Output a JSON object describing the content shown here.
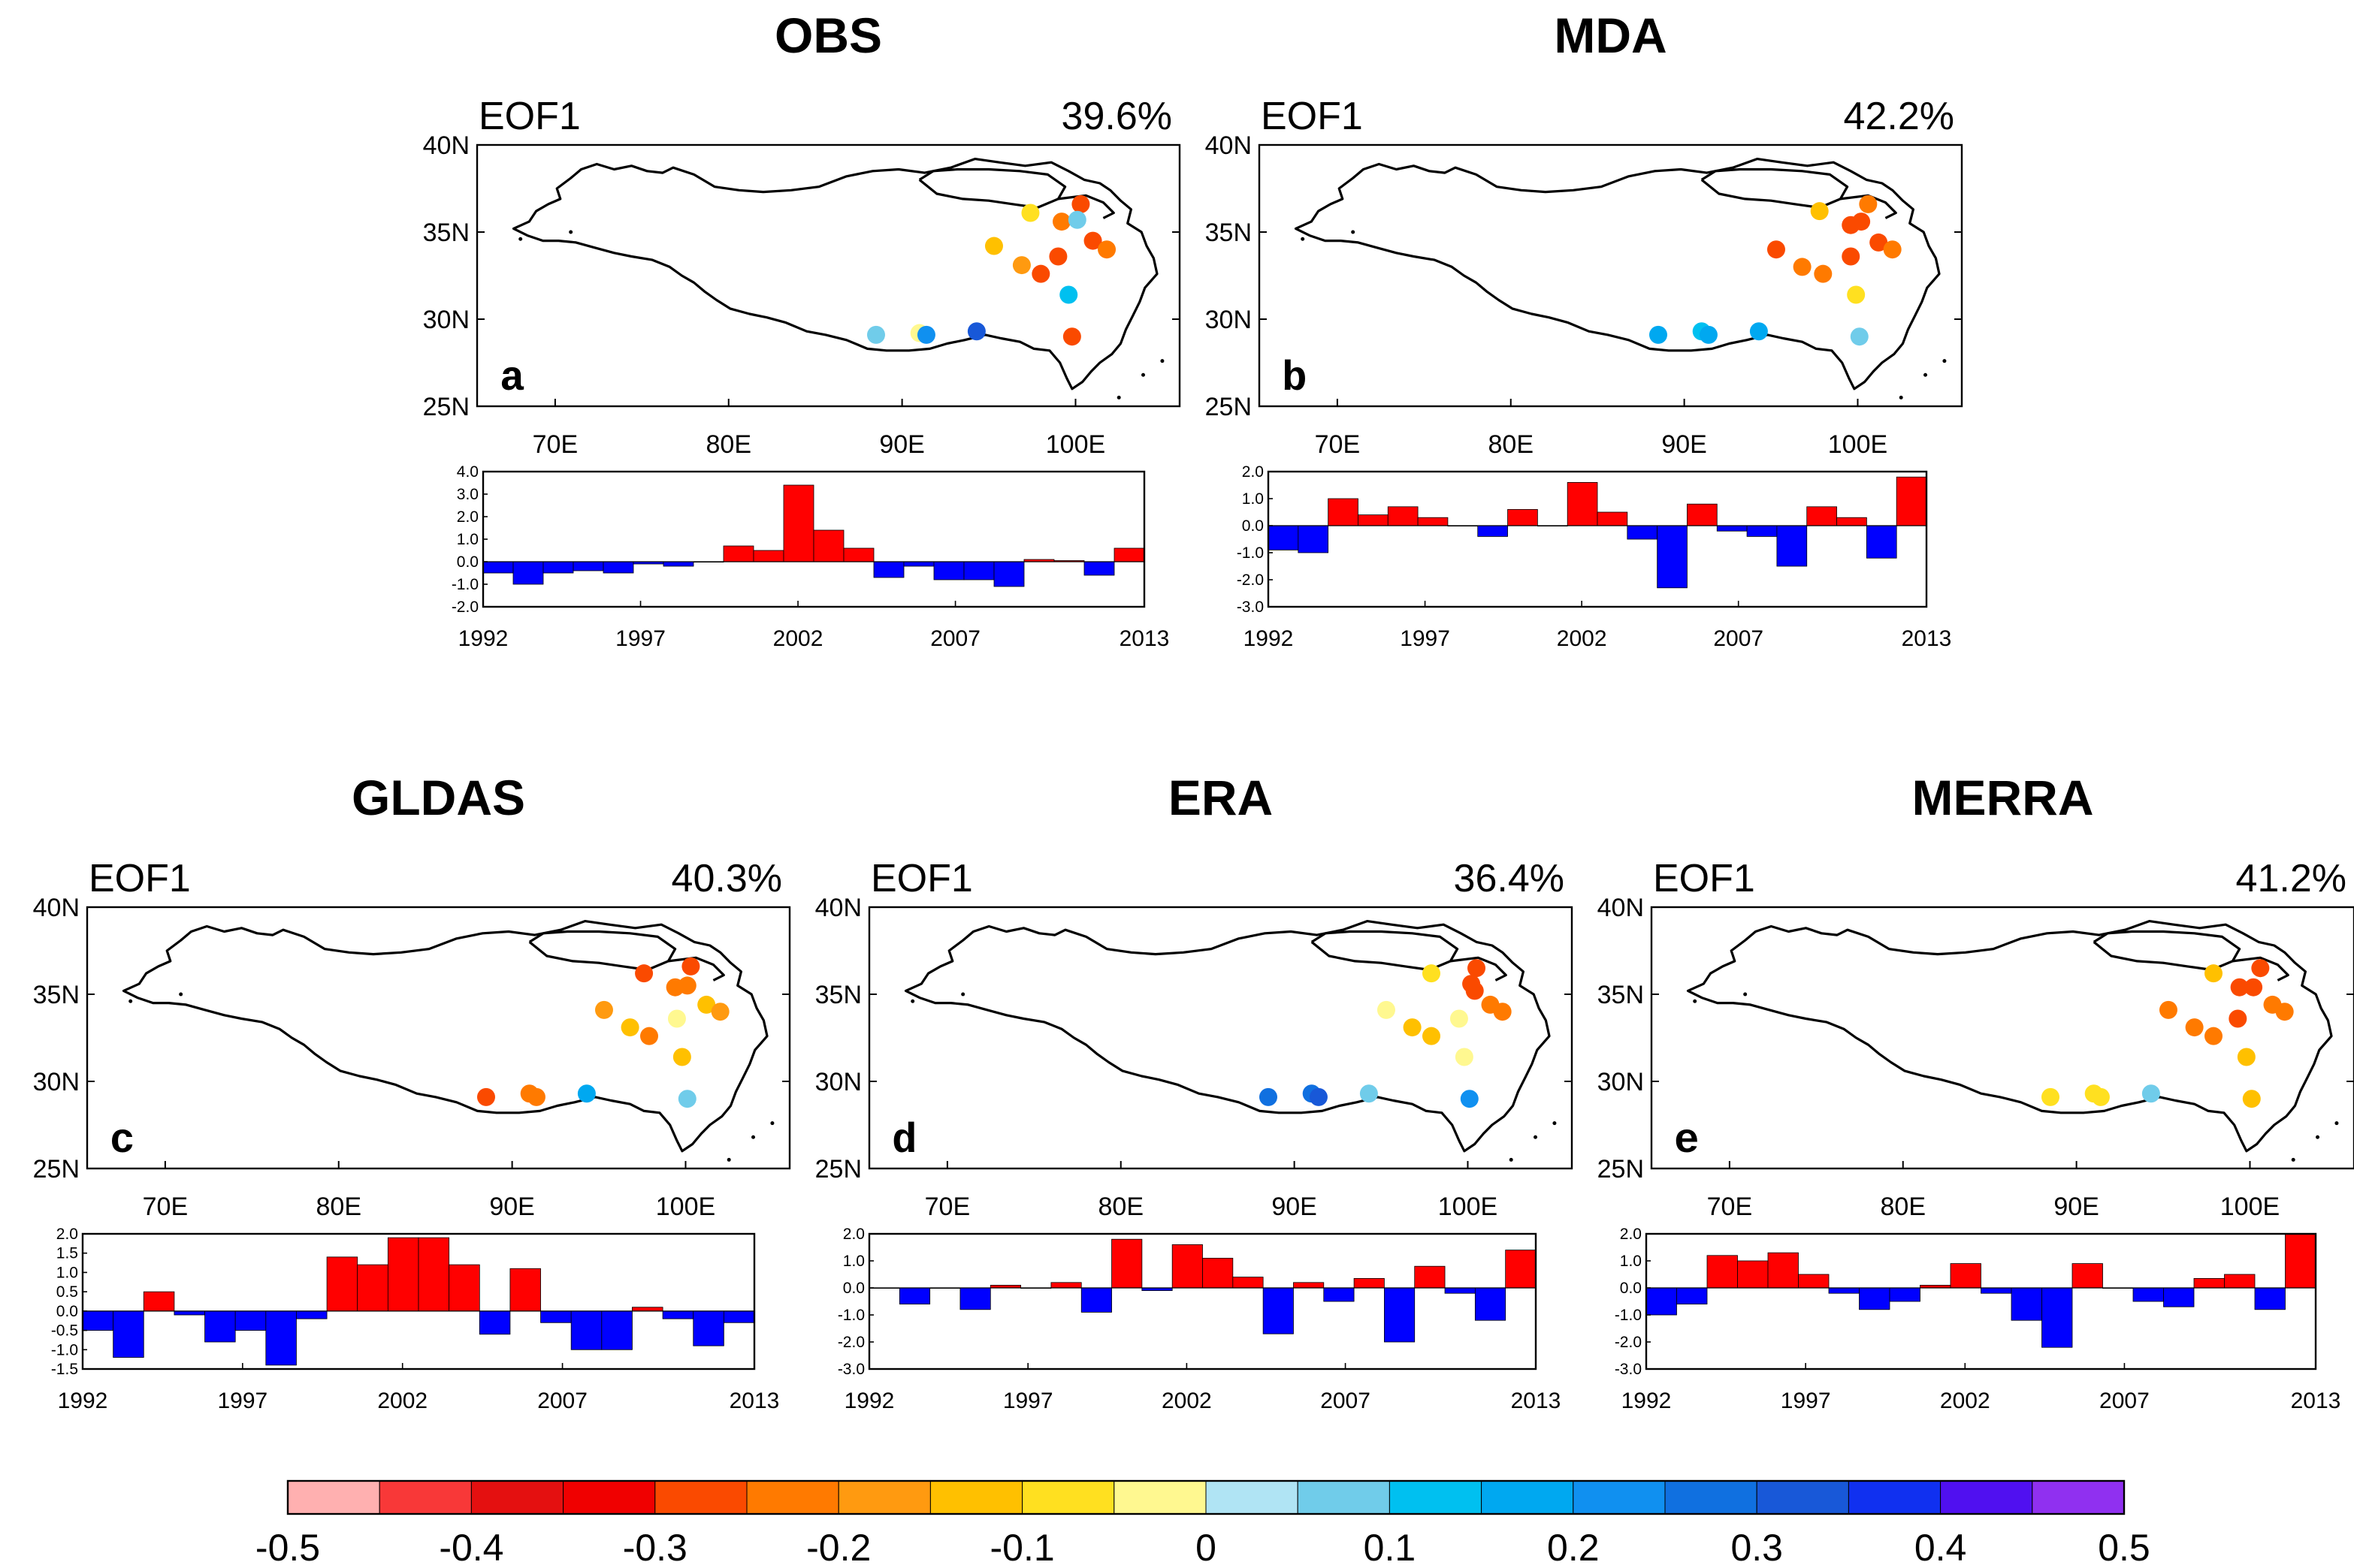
{
  "figure": {
    "map_eof_label": "EOF1",
    "lat_ticks": [
      "40N",
      "35N",
      "30N",
      "25N"
    ],
    "lon_ticks": [
      "70E",
      "80E",
      "90E",
      "100E"
    ],
    "year_ticks": [
      "1992",
      "1997",
      "2002",
      "2007",
      "2013"
    ],
    "colorbar": {
      "colors": [
        "#FFB0B0",
        "#F83838",
        "#E41010",
        "#F00000",
        "#FA4A00",
        "#FF7A00",
        "#FF9A10",
        "#FFC000",
        "#FFE020",
        "#FFF890",
        "#B0E4F4",
        "#70CCEA",
        "#00C0F0",
        "#00A8F0",
        "#1090F0",
        "#1070E0",
        "#1858D8",
        "#1030F0",
        "#5010F0",
        "#9030F0"
      ],
      "labels": [
        "-0.5",
        "-0.4",
        "-0.3",
        "-0.2",
        "-0.1",
        "0",
        "0.1",
        "0.2",
        "0.3",
        "0.4",
        "0.5"
      ]
    }
  },
  "chart_data": [
    {
      "type": "scatter-map+bar",
      "panel": "a",
      "title": "OBS",
      "eof_label": "EOF1",
      "variance": "39.6%",
      "stations": [
        {
          "lon": 100.3,
          "lat": 36.6,
          "v": -0.3
        },
        {
          "lon": 99.2,
          "lat": 35.6,
          "v": -0.22
        },
        {
          "lon": 100.1,
          "lat": 35.7,
          "v": 0.08
        },
        {
          "lon": 97.4,
          "lat": 36.1,
          "v": -0.1
        },
        {
          "lon": 101.0,
          "lat": 34.5,
          "v": -0.3
        },
        {
          "lon": 101.8,
          "lat": 34.0,
          "v": -0.2
        },
        {
          "lon": 95.3,
          "lat": 34.2,
          "v": -0.12
        },
        {
          "lon": 96.9,
          "lat": 33.1,
          "v": -0.16
        },
        {
          "lon": 98.0,
          "lat": 32.6,
          "v": -0.3
        },
        {
          "lon": 99.0,
          "lat": 33.6,
          "v": -0.3
        },
        {
          "lon": 99.6,
          "lat": 31.4,
          "v": 0.14
        },
        {
          "lon": 99.8,
          "lat": 29.0,
          "v": -0.3
        },
        {
          "lon": 88.5,
          "lat": 29.1,
          "v": 0.05
        },
        {
          "lon": 91.0,
          "lat": 29.2,
          "v": -0.05
        },
        {
          "lon": 91.4,
          "lat": 29.1,
          "v": 0.22
        },
        {
          "lon": 94.3,
          "lat": 29.3,
          "v": 0.3
        }
      ],
      "time_series": {
        "years": [
          1992,
          1993,
          1994,
          1995,
          1996,
          1997,
          1998,
          1999,
          2000,
          2001,
          2002,
          2003,
          2004,
          2005,
          2006,
          2007,
          2008,
          2009,
          2010,
          2011,
          2012,
          2013
        ],
        "values": [
          -0.5,
          -1.0,
          -0.5,
          -0.4,
          -0.5,
          -0.1,
          -0.2,
          0.0,
          0.7,
          0.5,
          3.4,
          1.4,
          0.6,
          -0.7,
          -0.2,
          -0.8,
          -0.8,
          -1.1,
          0.1,
          0.05,
          -0.6,
          0.6
        ],
        "ylim": [
          -2.0,
          4.0
        ],
        "yticks": [
          "4.0",
          "3.0",
          "2.0",
          "1.0",
          "0.0",
          "-1.0",
          "-2.0"
        ]
      }
    },
    {
      "type": "scatter-map+bar",
      "panel": "b",
      "title": "MDA",
      "eof_label": "EOF1",
      "variance": "42.2%",
      "stations": [
        {
          "lon": 100.6,
          "lat": 36.6,
          "v": -0.22
        },
        {
          "lon": 100.2,
          "lat": 35.6,
          "v": -0.3
        },
        {
          "lon": 99.6,
          "lat": 35.4,
          "v": -0.3
        },
        {
          "lon": 97.8,
          "lat": 36.2,
          "v": -0.12
        },
        {
          "lon": 101.2,
          "lat": 34.4,
          "v": -0.3
        },
        {
          "lon": 102.0,
          "lat": 34.0,
          "v": -0.22
        },
        {
          "lon": 95.3,
          "lat": 34.0,
          "v": -0.3
        },
        {
          "lon": 96.8,
          "lat": 33.0,
          "v": -0.2
        },
        {
          "lon": 98.0,
          "lat": 32.6,
          "v": -0.2
        },
        {
          "lon": 99.6,
          "lat": 33.6,
          "v": -0.3
        },
        {
          "lon": 99.9,
          "lat": 31.4,
          "v": -0.08
        },
        {
          "lon": 100.1,
          "lat": 29.0,
          "v": 0.08
        },
        {
          "lon": 88.5,
          "lat": 29.1,
          "v": 0.15
        },
        {
          "lon": 91.0,
          "lat": 29.3,
          "v": 0.12
        },
        {
          "lon": 91.4,
          "lat": 29.1,
          "v": 0.18
        },
        {
          "lon": 94.3,
          "lat": 29.3,
          "v": 0.18
        }
      ],
      "time_series": {
        "years": [
          1992,
          1993,
          1994,
          1995,
          1996,
          1997,
          1998,
          1999,
          2000,
          2001,
          2002,
          2003,
          2004,
          2005,
          2006,
          2007,
          2008,
          2009,
          2010,
          2011,
          2012,
          2013
        ],
        "values": [
          -0.9,
          -1.0,
          1.0,
          0.4,
          0.7,
          0.3,
          0.0,
          -0.4,
          0.6,
          0.0,
          1.6,
          0.5,
          -0.5,
          -2.3,
          0.8,
          -0.2,
          -0.4,
          -1.5,
          0.7,
          0.3,
          -1.2,
          1.8
        ],
        "ylim": [
          -3.0,
          2.0
        ],
        "yticks": [
          "2.0",
          "1.0",
          "0.0",
          "-1.0",
          "-2.0",
          "-3.0"
        ]
      }
    },
    {
      "type": "scatter-map+bar",
      "panel": "c",
      "title": "GLDAS",
      "eof_label": "EOF1",
      "variance": "40.3%",
      "stations": [
        {
          "lon": 100.3,
          "lat": 36.6,
          "v": -0.3
        },
        {
          "lon": 100.1,
          "lat": 35.5,
          "v": -0.25
        },
        {
          "lon": 99.4,
          "lat": 35.4,
          "v": -0.22
        },
        {
          "lon": 97.6,
          "lat": 36.2,
          "v": -0.3
        },
        {
          "lon": 101.2,
          "lat": 34.4,
          "v": -0.12
        },
        {
          "lon": 102.0,
          "lat": 34.0,
          "v": -0.16
        },
        {
          "lon": 95.3,
          "lat": 34.1,
          "v": -0.16
        },
        {
          "lon": 96.8,
          "lat": 33.1,
          "v": -0.12
        },
        {
          "lon": 97.9,
          "lat": 32.6,
          "v": -0.2
        },
        {
          "lon": 99.5,
          "lat": 33.6,
          "v": -0.04
        },
        {
          "lon": 99.8,
          "lat": 31.4,
          "v": -0.12
        },
        {
          "lon": 100.1,
          "lat": 29.0,
          "v": 0.06
        },
        {
          "lon": 88.5,
          "lat": 29.1,
          "v": -0.3
        },
        {
          "lon": 91.0,
          "lat": 29.3,
          "v": -0.2
        },
        {
          "lon": 91.4,
          "lat": 29.1,
          "v": -0.2
        },
        {
          "lon": 94.3,
          "lat": 29.3,
          "v": 0.15
        }
      ],
      "time_series": {
        "years": [
          1992,
          1993,
          1994,
          1995,
          1996,
          1997,
          1998,
          1999,
          2000,
          2001,
          2002,
          2003,
          2004,
          2005,
          2006,
          2007,
          2008,
          2009,
          2010,
          2011,
          2012,
          2013
        ],
        "values": [
          -0.5,
          -1.2,
          0.5,
          -0.1,
          -0.8,
          -0.5,
          -1.4,
          -0.2,
          1.4,
          1.2,
          1.9,
          1.9,
          1.2,
          -0.6,
          1.1,
          -0.3,
          -1.0,
          -1.0,
          0.1,
          -0.2,
          -0.9,
          -0.3
        ],
        "ylim": [
          -1.5,
          2.0
        ],
        "yticks": [
          "2.0",
          "1.5",
          "1.0",
          "0.5",
          "0.0",
          "-0.5",
          "-1.0",
          "-1.5"
        ]
      }
    },
    {
      "type": "scatter-map+bar",
      "panel": "d",
      "title": "ERA",
      "eof_label": "EOF1",
      "variance": "36.4%",
      "stations": [
        {
          "lon": 100.5,
          "lat": 36.5,
          "v": -0.3
        },
        {
          "lon": 100.2,
          "lat": 35.6,
          "v": -0.3
        },
        {
          "lon": 100.4,
          "lat": 35.2,
          "v": -0.3
        },
        {
          "lon": 97.9,
          "lat": 36.2,
          "v": -0.1
        },
        {
          "lon": 101.3,
          "lat": 34.4,
          "v": -0.22
        },
        {
          "lon": 102.0,
          "lat": 34.0,
          "v": -0.2
        },
        {
          "lon": 95.3,
          "lat": 34.1,
          "v": -0.03
        },
        {
          "lon": 96.8,
          "lat": 33.1,
          "v": -0.12
        },
        {
          "lon": 97.9,
          "lat": 32.6,
          "v": -0.12
        },
        {
          "lon": 99.5,
          "lat": 33.6,
          "v": -0.04
        },
        {
          "lon": 99.8,
          "lat": 31.4,
          "v": -0.04
        },
        {
          "lon": 100.1,
          "lat": 29.0,
          "v": 0.22
        },
        {
          "lon": 88.5,
          "lat": 29.1,
          "v": 0.25
        },
        {
          "lon": 91.0,
          "lat": 29.3,
          "v": 0.28
        },
        {
          "lon": 91.4,
          "lat": 29.1,
          "v": 0.3
        },
        {
          "lon": 94.3,
          "lat": 29.3,
          "v": 0.06
        }
      ],
      "time_series": {
        "years": [
          1992,
          1993,
          1994,
          1995,
          1996,
          1997,
          1998,
          1999,
          2000,
          2001,
          2002,
          2003,
          2004,
          2005,
          2006,
          2007,
          2008,
          2009,
          2010,
          2011,
          2012,
          2013
        ],
        "values": [
          0.0,
          -0.6,
          0.0,
          -0.8,
          0.1,
          0.0,
          0.2,
          -0.9,
          1.8,
          -0.1,
          1.6,
          1.1,
          0.4,
          -1.7,
          0.2,
          -0.5,
          0.35,
          -2.0,
          0.8,
          -0.2,
          -1.2,
          1.4
        ],
        "ylim": [
          -3.0,
          2.0
        ],
        "yticks": [
          "2.0",
          "1.0",
          "0.0",
          "-1.0",
          "-2.0",
          "-3.0"
        ]
      }
    },
    {
      "type": "scatter-map+bar",
      "panel": "e",
      "title": "MERRA",
      "eof_label": "EOF1",
      "variance": "41.2%",
      "stations": [
        {
          "lon": 100.6,
          "lat": 36.5,
          "v": -0.3
        },
        {
          "lon": 100.2,
          "lat": 35.4,
          "v": -0.3
        },
        {
          "lon": 99.4,
          "lat": 35.4,
          "v": -0.3
        },
        {
          "lon": 97.9,
          "lat": 36.2,
          "v": -0.12
        },
        {
          "lon": 101.3,
          "lat": 34.4,
          "v": -0.22
        },
        {
          "lon": 102.0,
          "lat": 34.0,
          "v": -0.22
        },
        {
          "lon": 95.3,
          "lat": 34.1,
          "v": -0.2
        },
        {
          "lon": 96.8,
          "lat": 33.1,
          "v": -0.22
        },
        {
          "lon": 97.9,
          "lat": 32.6,
          "v": -0.25
        },
        {
          "lon": 99.3,
          "lat": 33.6,
          "v": -0.3
        },
        {
          "lon": 99.8,
          "lat": 31.4,
          "v": -0.12
        },
        {
          "lon": 100.1,
          "lat": 29.0,
          "v": -0.12
        },
        {
          "lon": 88.5,
          "lat": 29.1,
          "v": -0.1
        },
        {
          "lon": 91.0,
          "lat": 29.3,
          "v": -0.1
        },
        {
          "lon": 91.4,
          "lat": 29.1,
          "v": -0.1
        },
        {
          "lon": 94.3,
          "lat": 29.3,
          "v": 0.08
        }
      ],
      "time_series": {
        "years": [
          1992,
          1993,
          1994,
          1995,
          1996,
          1997,
          1998,
          1999,
          2000,
          2001,
          2002,
          2003,
          2004,
          2005,
          2006,
          2007,
          2008,
          2009,
          2010,
          2011,
          2012,
          2013
        ],
        "values": [
          -1.0,
          -0.6,
          1.2,
          1.0,
          1.3,
          0.5,
          -0.2,
          -0.8,
          -0.5,
          0.1,
          0.9,
          -0.2,
          -1.2,
          -2.2,
          0.9,
          0.0,
          -0.5,
          -0.7,
          0.35,
          0.5,
          -0.8,
          2.0
        ],
        "ylim": [
          -3.0,
          2.0
        ],
        "yticks": [
          "2.0",
          "1.0",
          "0.0",
          "-1.0",
          "-2.0",
          "-3.0"
        ]
      }
    }
  ]
}
